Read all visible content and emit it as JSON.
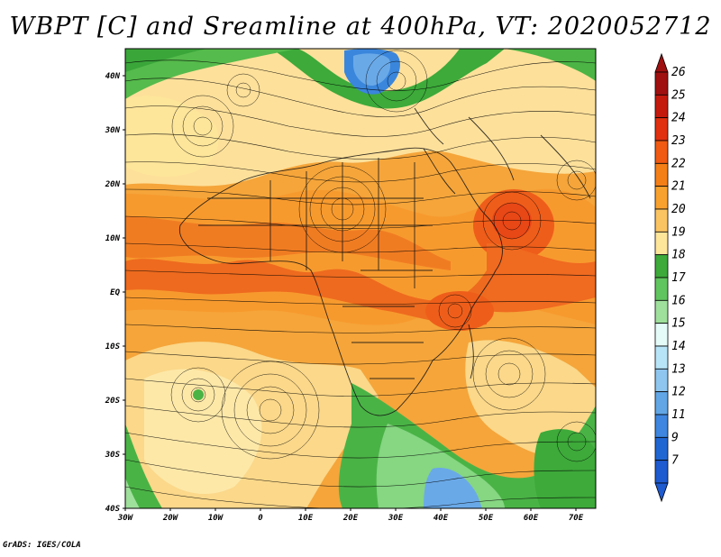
{
  "title": "WBPT [C] and Sreamline at 400hPa, VT: 2020052712",
  "credit": "GrADS: IGES/COLA",
  "map": {
    "lat_labels": [
      "40N",
      "30N",
      "20N",
      "10N",
      "EQ",
      "10S",
      "20S",
      "30S",
      "40S"
    ],
    "lon_labels": [
      "30W",
      "20W",
      "10W",
      "0",
      "10E",
      "20E",
      "30E",
      "40E",
      "50E",
      "60E",
      "70E"
    ]
  },
  "colorbar": {
    "levels": [
      "26",
      "25",
      "24",
      "23",
      "22",
      "21",
      "20",
      "19",
      "18",
      "17",
      "16",
      "15",
      "14",
      "13",
      "12",
      "11",
      "9",
      "7"
    ],
    "colors": [
      "#a01010",
      "#c41a0e",
      "#e03010",
      "#f05a12",
      "#f57f17",
      "#f9a12e",
      "#fbc463",
      "#fde59a",
      "#3daa3a",
      "#60c55e",
      "#9fe09c",
      "#e4fbf8",
      "#b8e4f8",
      "#8ec6ef",
      "#62a6e6",
      "#3e86df",
      "#2066d3",
      "#1e5ad0"
    ]
  },
  "colors": {
    "green": "#3aa63a",
    "cream": "#fbe3a0",
    "orange": "#f5a030",
    "red": "#ee5a18",
    "blue": "#2f7dd8"
  }
}
